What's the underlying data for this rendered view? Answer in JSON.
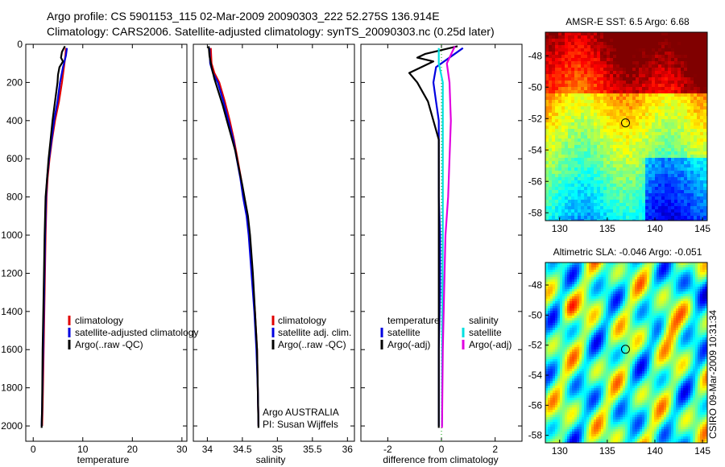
{
  "title_line1": "Argo profile: CS 5901153_115 02-Mar-2009 20090303_222 52.275S 136.914E",
  "title_line2": "Climatology: CARS2006. Satellite-adjusted climatology: synTS_20090303.nc (0.25d later)",
  "credit": "CSIRO 09-Mar-2009 10:31:34",
  "colors": {
    "climatology": "#e00000",
    "satellite": "#0000e0",
    "argo": "#000000",
    "satellite_diff": "#00e0e0",
    "argo_salt_diff": "#e000e0"
  },
  "chart_data": [
    {
      "type": "line",
      "name": "temperature",
      "xlabel": "temperature",
      "xlim": [
        -1.5,
        31
      ],
      "ylim": [
        0,
        2080
      ],
      "y_reversed": true,
      "xticks": [
        "0",
        "10",
        "20",
        "30"
      ],
      "xtick_values": [
        0,
        10,
        20,
        30
      ],
      "yticks": [
        "0",
        "200",
        "400",
        "600",
        "800",
        "1000",
        "1200",
        "1400",
        "1600",
        "1800",
        "2000"
      ],
      "ytick_values": [
        0,
        200,
        400,
        600,
        800,
        1000,
        1200,
        1400,
        1600,
        1800,
        2000
      ],
      "legend": [
        "climatology",
        "satellite-adjusted climatology",
        "Argo(..raw -QC)"
      ],
      "series": [
        {
          "name": "climatology",
          "color": "#e00000",
          "points": [
            [
              6.6,
              20
            ],
            [
              6.5,
              60
            ],
            [
              6.2,
              120
            ],
            [
              5.8,
              200
            ],
            [
              5.2,
              300
            ],
            [
              4.4,
              400
            ],
            [
              3.8,
              500
            ],
            [
              3.3,
              600
            ],
            [
              2.9,
              700
            ],
            [
              2.7,
              800
            ],
            [
              2.5,
              1000
            ],
            [
              2.3,
              1300
            ],
            [
              2.1,
              1600
            ],
            [
              1.9,
              1900
            ],
            [
              1.8,
              2000
            ]
          ]
        },
        {
          "name": "satellite-adjusted climatology",
          "color": "#0000e0",
          "points": [
            [
              6.8,
              20
            ],
            [
              6.6,
              60
            ],
            [
              6.0,
              120
            ],
            [
              5.4,
              200
            ],
            [
              4.9,
              300
            ],
            [
              4.2,
              400
            ],
            [
              3.7,
              500
            ],
            [
              3.2,
              600
            ],
            [
              2.8,
              700
            ],
            [
              2.6,
              800
            ],
            [
              2.4,
              1000
            ],
            [
              2.2,
              1300
            ],
            [
              2.0,
              1600
            ],
            [
              1.8,
              1900
            ],
            [
              1.7,
              2000
            ]
          ]
        },
        {
          "name": "Argo(..raw -QC)",
          "color": "#000000",
          "points": [
            [
              6.4,
              10
            ],
            [
              5.8,
              40
            ],
            [
              5.6,
              70
            ],
            [
              6.0,
              90
            ],
            [
              5.3,
              120
            ],
            [
              5.0,
              160
            ],
            [
              4.9,
              200
            ],
            [
              4.4,
              300
            ],
            [
              3.9,
              400
            ],
            [
              3.5,
              500
            ],
            [
              3.1,
              600
            ],
            [
              2.8,
              700
            ],
            [
              2.5,
              800
            ],
            [
              2.3,
              1000
            ],
            [
              2.1,
              1300
            ],
            [
              1.9,
              1600
            ],
            [
              1.8,
              1900
            ],
            [
              1.7,
              2010
            ]
          ]
        }
      ]
    },
    {
      "type": "line",
      "name": "salinity",
      "xlabel": "salinity",
      "xlim": [
        33.8,
        36.1
      ],
      "ylim": [
        0,
        2080
      ],
      "y_reversed": true,
      "xticks": [
        "34",
        "34.5",
        "35",
        "35.5",
        "36"
      ],
      "xtick_values": [
        34,
        34.5,
        35,
        35.5,
        36
      ],
      "legend": [
        "climatology",
        "satellite adj. clim.",
        "Argo(..raw -QC)"
      ],
      "annotation": [
        "Argo AUSTRALIA",
        "PI: Susan Wijffels"
      ],
      "series": [
        {
          "name": "climatology",
          "color": "#e00000",
          "points": [
            [
              34.05,
              20
            ],
            [
              34.06,
              100
            ],
            [
              34.1,
              150
            ],
            [
              34.17,
              200
            ],
            [
              34.25,
              300
            ],
            [
              34.32,
              400
            ],
            [
              34.38,
              500
            ],
            [
              34.43,
              600
            ],
            [
              34.48,
              700
            ],
            [
              34.52,
              800
            ],
            [
              34.57,
              900
            ],
            [
              34.6,
              1000
            ],
            [
              34.64,
              1200
            ],
            [
              34.68,
              1400
            ],
            [
              34.71,
              1600
            ],
            [
              34.72,
              1800
            ],
            [
              34.73,
              2000
            ]
          ]
        },
        {
          "name": "satellite adj. clim.",
          "color": "#0000e0",
          "points": [
            [
              34.03,
              20
            ],
            [
              34.04,
              100
            ],
            [
              34.08,
              150
            ],
            [
              34.15,
              200
            ],
            [
              34.23,
              300
            ],
            [
              34.3,
              400
            ],
            [
              34.37,
              500
            ],
            [
              34.42,
              600
            ],
            [
              34.47,
              700
            ],
            [
              34.51,
              800
            ],
            [
              34.56,
              900
            ],
            [
              34.59,
              1000
            ],
            [
              34.63,
              1200
            ],
            [
              34.67,
              1400
            ],
            [
              34.7,
              1600
            ],
            [
              34.72,
              1800
            ],
            [
              34.73,
              2000
            ]
          ]
        },
        {
          "name": "Argo(..raw -QC)",
          "color": "#000000",
          "points": [
            [
              34.02,
              10
            ],
            [
              34.03,
              60
            ],
            [
              34.06,
              120
            ],
            [
              34.1,
              180
            ],
            [
              34.16,
              250
            ],
            [
              34.22,
              320
            ],
            [
              34.28,
              400
            ],
            [
              34.34,
              480
            ],
            [
              34.4,
              560
            ],
            [
              34.45,
              650
            ],
            [
              34.5,
              740
            ],
            [
              34.54,
              820
            ],
            [
              34.58,
              900
            ],
            [
              34.61,
              1000
            ],
            [
              34.65,
              1200
            ],
            [
              34.68,
              1400
            ],
            [
              34.71,
              1600
            ],
            [
              34.72,
              1800
            ],
            [
              34.73,
              2010
            ]
          ]
        }
      ]
    },
    {
      "type": "line",
      "name": "difference",
      "xlabel": "difference from climatology",
      "xlim": [
        -3,
        3
      ],
      "ylim": [
        0,
        2080
      ],
      "y_reversed": true,
      "xticks": [
        "-2",
        "0",
        "2"
      ],
      "xtick_values": [
        -2,
        0,
        2
      ],
      "legend_temperature_title": "temperature",
      "legend_salinity_title": "salinity",
      "legend_temperature": [
        "satellite",
        "Argo(-adj)"
      ],
      "legend_salinity": [
        "satellite",
        "Argo(-adj)"
      ],
      "series": [
        {
          "name": "temperature satellite",
          "color": "#0000e0",
          "points": [
            [
              0.8,
              20
            ],
            [
              0.4,
              60
            ],
            [
              -0.2,
              120
            ],
            [
              -0.3,
              200
            ],
            [
              -0.2,
              300
            ],
            [
              -0.1,
              400
            ],
            [
              -0.1,
              500
            ],
            [
              -0.1,
              600
            ],
            [
              -0.1,
              800
            ],
            [
              -0.05,
              1000
            ],
            [
              -0.05,
              1300
            ],
            [
              -0.1,
              1600
            ],
            [
              -0.1,
              2000
            ]
          ]
        },
        {
          "name": "temperature Argo(-adj)",
          "color": "#000000",
          "points": [
            [
              0.6,
              10
            ],
            [
              -0.6,
              50
            ],
            [
              -0.9,
              70
            ],
            [
              -0.3,
              90
            ],
            [
              -1.2,
              150
            ],
            [
              -0.9,
              200
            ],
            [
              -0.5,
              300
            ],
            [
              -0.3,
              400
            ],
            [
              -0.1,
              500
            ],
            [
              -0.1,
              700
            ],
            [
              -0.1,
              1000
            ],
            [
              -0.1,
              1500
            ],
            [
              -0.1,
              2010
            ]
          ]
        },
        {
          "name": "salinity satellite",
          "color": "#00e0e0",
          "points": [
            [
              -0.1,
              20
            ],
            [
              -0.1,
              100
            ],
            [
              0.05,
              200
            ],
            [
              0.05,
              400
            ],
            [
              0.05,
              600
            ],
            [
              0.05,
              1000
            ],
            [
              0.03,
              1500
            ],
            [
              0.02,
              2000
            ]
          ]
        },
        {
          "name": "salinity Argo(-adj)",
          "color": "#e000e0",
          "points": [
            [
              0.5,
              10
            ],
            [
              0.2,
              100
            ],
            [
              0.3,
              200
            ],
            [
              0.35,
              400
            ],
            [
              0.3,
              600
            ],
            [
              0.25,
              800
            ],
            [
              0.15,
              1000
            ],
            [
              0.1,
              1300
            ],
            [
              0.05,
              1600
            ],
            [
              0.02,
              2010
            ]
          ]
        }
      ]
    },
    {
      "type": "heatmap",
      "name": "sst_map",
      "title": "AMSR-E SST: 6.5 Argo: 6.68",
      "xlim": [
        128.5,
        145.5
      ],
      "ylim": [
        -58.5,
        -46.5
      ],
      "xticks": [
        "130",
        "135",
        "140",
        "145"
      ],
      "xtick_values": [
        130,
        135,
        140,
        145
      ],
      "yticks": [
        "-48",
        "-50",
        "-52",
        "-54",
        "-56",
        "-58"
      ],
      "ytick_values": [
        -48,
        -50,
        -52,
        -54,
        -56,
        -58
      ],
      "marker": {
        "lon": 136.914,
        "lat": -52.275
      }
    },
    {
      "type": "heatmap",
      "name": "sla_map",
      "title": "Altimetric SLA: -0.046 Argo: -0.051",
      "xlim": [
        128.5,
        145.5
      ],
      "ylim": [
        -58.5,
        -46.5
      ],
      "xticks": [
        "130",
        "135",
        "140",
        "145"
      ],
      "xtick_values": [
        130,
        135,
        140,
        145
      ],
      "yticks": [
        "-48",
        "-50",
        "-52",
        "-54",
        "-56",
        "-58"
      ],
      "ytick_values": [
        -48,
        -50,
        -52,
        -54,
        -56,
        -58
      ],
      "marker": {
        "lon": 136.914,
        "lat": -52.275
      }
    }
  ]
}
